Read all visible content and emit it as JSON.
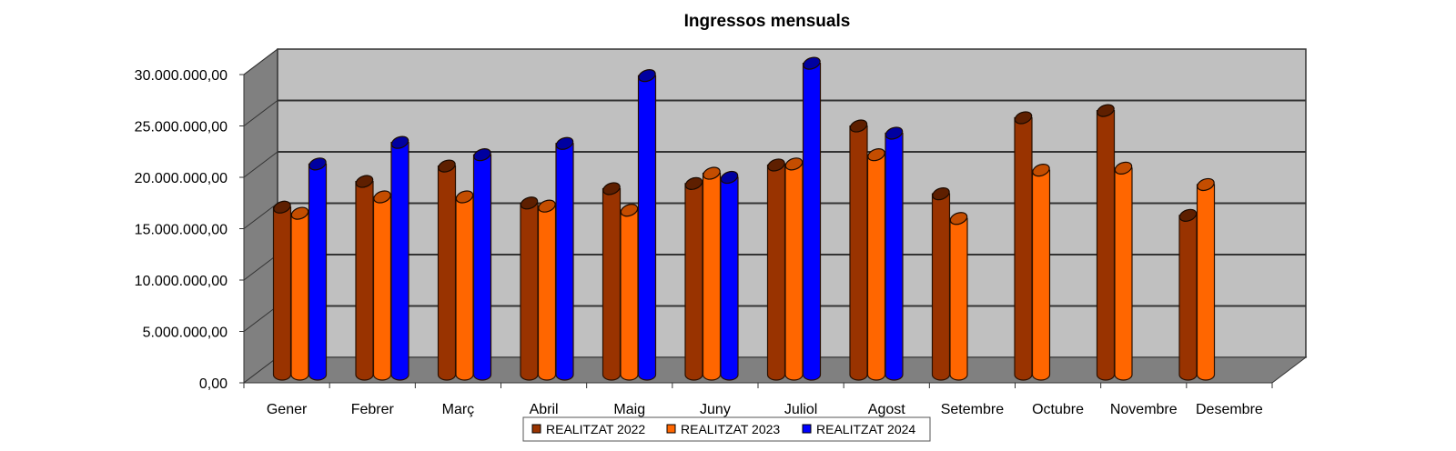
{
  "chart_data": {
    "type": "bar",
    "title": "Ingressos mensuals",
    "xlabel": "",
    "ylabel": "",
    "ylim": [
      0,
      30000000
    ],
    "yticks": [
      "0,00",
      "5.000.000,00",
      "10.000.000,00",
      "15.000.000,00",
      "20.000.000,00",
      "25.000.000,00",
      "30.000.000,00"
    ],
    "grid": true,
    "legend_position": "bottom",
    "categories": [
      "Gener",
      "Febrer",
      "Març",
      "Abril",
      "Maig",
      "Juny",
      "Juliol",
      "Agost",
      "Setembre",
      "Octubre",
      "Novembre",
      "Desembre"
    ],
    "series": [
      {
        "name": "REALITZAT 2022",
        "color": "#993300",
        "values": [
          16300000,
          18800000,
          20300000,
          16700000,
          18100000,
          18600000,
          20400000,
          24200000,
          17600000,
          25000000,
          25700000,
          15500000
        ]
      },
      {
        "name": "REALITZAT 2023",
        "color": "#FF6600",
        "values": [
          15700000,
          17300000,
          17300000,
          16400000,
          16000000,
          19600000,
          20500000,
          21400000,
          15200000,
          19900000,
          20100000,
          18500000
        ]
      },
      {
        "name": "REALITZAT 2024",
        "color": "#0000FF",
        "values": [
          20500000,
          22600000,
          21400000,
          22500000,
          29100000,
          19200000,
          30300000,
          23500000,
          null,
          null,
          null,
          null
        ]
      }
    ]
  }
}
